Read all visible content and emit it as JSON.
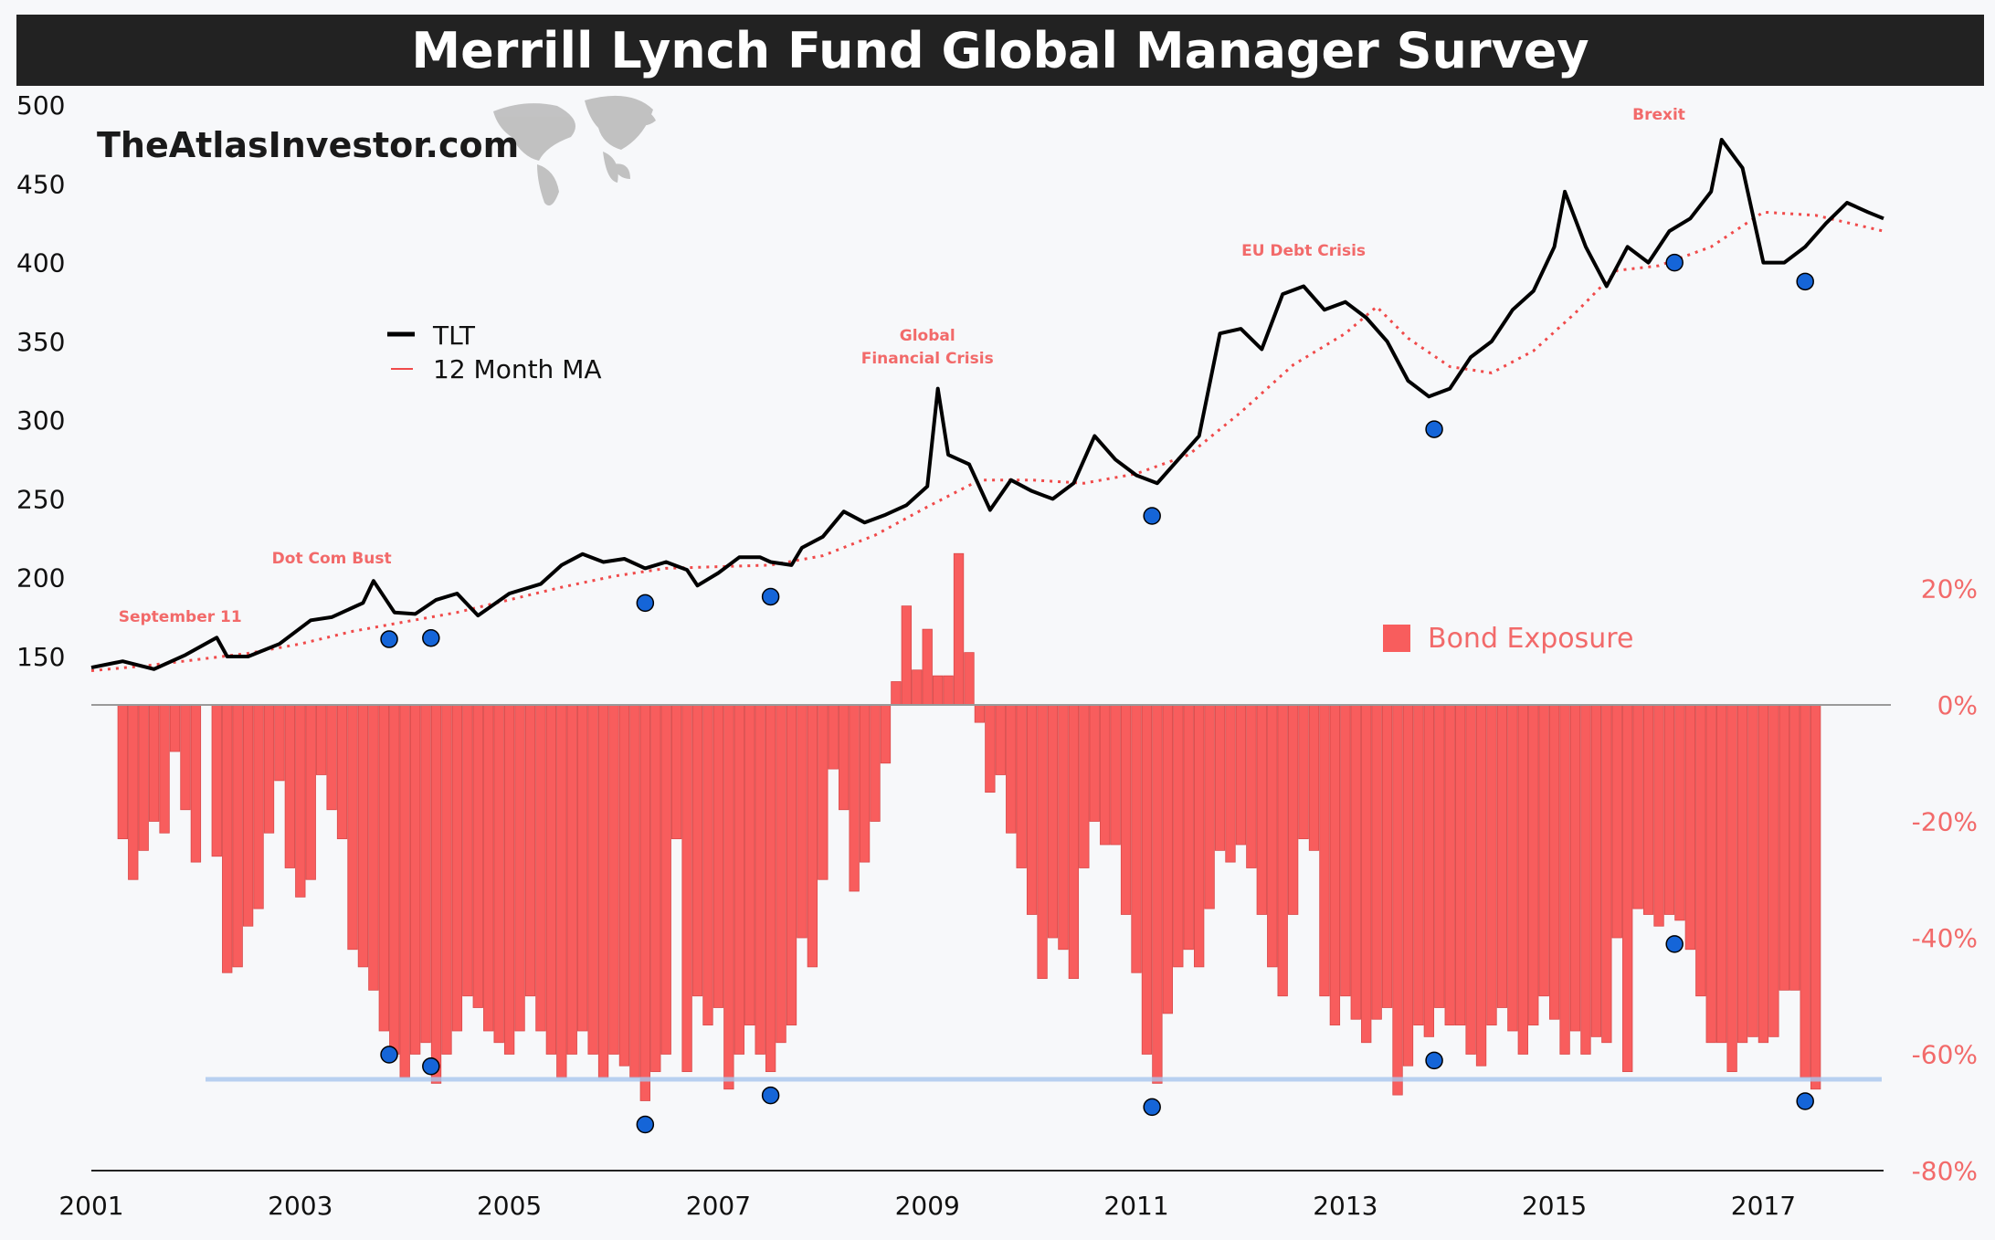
{
  "title": "Merrill Lynch Fund Global Manager Survey",
  "brand": "TheAtlasInvestor.com",
  "colors": {
    "tlt": "#000000",
    "ma": "#f04a4a",
    "bars": "#f85d5d",
    "dots": "#1565d8",
    "accent": "#f26a6a",
    "threshold": "#a9c7ee"
  },
  "chart_data": {
    "type": "line+bar",
    "x_ticks": [
      "2001",
      "2003",
      "2005",
      "2007",
      "2009",
      "2011",
      "2013",
      "2015",
      "2017"
    ],
    "xlim": [
      2001.0,
      2018.15
    ],
    "left_axis": {
      "ticks": [
        500,
        450,
        400,
        350,
        300,
        250,
        200,
        150
      ],
      "ylim": [
        125,
        500
      ]
    },
    "right_axis": {
      "ticks": [
        "20%",
        "0%",
        "-20%",
        "-40%",
        "-60%",
        "-80%"
      ],
      "ylim": [
        -80,
        25
      ]
    },
    "legend": {
      "tlt": "TLT",
      "ma": "12 Month MA",
      "bars": "Bond Exposure"
    },
    "tlt_points": [
      [
        2001.0,
        143
      ],
      [
        2001.3,
        147
      ],
      [
        2001.6,
        142
      ],
      [
        2001.9,
        151
      ],
      [
        2002.2,
        162
      ],
      [
        2002.3,
        150
      ],
      [
        2002.5,
        150
      ],
      [
        2002.8,
        158
      ],
      [
        2003.1,
        173
      ],
      [
        2003.3,
        175
      ],
      [
        2003.6,
        184
      ],
      [
        2003.7,
        198
      ],
      [
        2003.9,
        178
      ],
      [
        2004.1,
        177
      ],
      [
        2004.3,
        186
      ],
      [
        2004.5,
        190
      ],
      [
        2004.7,
        176
      ],
      [
        2005.0,
        190
      ],
      [
        2005.3,
        196
      ],
      [
        2005.5,
        208
      ],
      [
        2005.7,
        215
      ],
      [
        2005.9,
        210
      ],
      [
        2006.1,
        212
      ],
      [
        2006.3,
        206
      ],
      [
        2006.5,
        210
      ],
      [
        2006.7,
        205
      ],
      [
        2006.8,
        195
      ],
      [
        2007.0,
        203
      ],
      [
        2007.2,
        213
      ],
      [
        2007.4,
        213
      ],
      [
        2007.5,
        210
      ],
      [
        2007.7,
        208
      ],
      [
        2007.8,
        219
      ],
      [
        2008.0,
        226
      ],
      [
        2008.2,
        242
      ],
      [
        2008.4,
        235
      ],
      [
        2008.6,
        240
      ],
      [
        2008.8,
        246
      ],
      [
        2009.0,
        258
      ],
      [
        2009.1,
        320
      ],
      [
        2009.2,
        278
      ],
      [
        2009.4,
        272
      ],
      [
        2009.6,
        243
      ],
      [
        2009.8,
        262
      ],
      [
        2010.0,
        255
      ],
      [
        2010.2,
        250
      ],
      [
        2010.4,
        260
      ],
      [
        2010.6,
        290
      ],
      [
        2010.8,
        275
      ],
      [
        2011.0,
        265
      ],
      [
        2011.2,
        260
      ],
      [
        2011.4,
        275
      ],
      [
        2011.6,
        290
      ],
      [
        2011.8,
        355
      ],
      [
        2012.0,
        358
      ],
      [
        2012.2,
        345
      ],
      [
        2012.4,
        380
      ],
      [
        2012.6,
        385
      ],
      [
        2012.8,
        370
      ],
      [
        2013.0,
        375
      ],
      [
        2013.2,
        365
      ],
      [
        2013.4,
        350
      ],
      [
        2013.6,
        325
      ],
      [
        2013.8,
        315
      ],
      [
        2014.0,
        320
      ],
      [
        2014.2,
        340
      ],
      [
        2014.4,
        350
      ],
      [
        2014.6,
        370
      ],
      [
        2014.8,
        382
      ],
      [
        2015.0,
        410
      ],
      [
        2015.1,
        445
      ],
      [
        2015.3,
        410
      ],
      [
        2015.5,
        385
      ],
      [
        2015.7,
        410
      ],
      [
        2015.9,
        400
      ],
      [
        2016.1,
        420
      ],
      [
        2016.3,
        428
      ],
      [
        2016.5,
        445
      ],
      [
        2016.6,
        478
      ],
      [
        2016.8,
        460
      ],
      [
        2016.9,
        430
      ],
      [
        2017.0,
        400
      ],
      [
        2017.2,
        400
      ],
      [
        2017.4,
        410
      ],
      [
        2017.6,
        425
      ],
      [
        2017.8,
        438
      ],
      [
        2018.0,
        432
      ],
      [
        2018.15,
        428
      ]
    ],
    "ma_points": [
      [
        2001.0,
        141
      ],
      [
        2001.5,
        144
      ],
      [
        2002.0,
        148
      ],
      [
        2002.5,
        152
      ],
      [
        2003.0,
        158
      ],
      [
        2003.5,
        166
      ],
      [
        2004.0,
        172
      ],
      [
        2004.5,
        178
      ],
      [
        2005.0,
        186
      ],
      [
        2005.5,
        194
      ],
      [
        2006.0,
        201
      ],
      [
        2006.5,
        206
      ],
      [
        2007.0,
        207
      ],
      [
        2007.5,
        208
      ],
      [
        2008.0,
        214
      ],
      [
        2008.5,
        227
      ],
      [
        2009.0,
        245
      ],
      [
        2009.5,
        262
      ],
      [
        2010.0,
        262
      ],
      [
        2010.5,
        260
      ],
      [
        2011.0,
        266
      ],
      [
        2011.5,
        278
      ],
      [
        2012.0,
        305
      ],
      [
        2012.5,
        335
      ],
      [
        2013.0,
        355
      ],
      [
        2013.3,
        372
      ],
      [
        2013.6,
        352
      ],
      [
        2014.0,
        334
      ],
      [
        2014.4,
        330
      ],
      [
        2014.8,
        344
      ],
      [
        2015.2,
        368
      ],
      [
        2015.6,
        395
      ],
      [
        2016.0,
        398
      ],
      [
        2016.5,
        410
      ],
      [
        2017.0,
        432
      ],
      [
        2017.5,
        430
      ],
      [
        2018.15,
        420
      ]
    ],
    "bond_exposure": [
      [
        2001.3,
        -23
      ],
      [
        2001.4,
        -30
      ],
      [
        2001.5,
        -25
      ],
      [
        2001.6,
        -20
      ],
      [
        2001.7,
        -22
      ],
      [
        2001.8,
        -8
      ],
      [
        2001.9,
        -18
      ],
      [
        2002.0,
        -27
      ],
      [
        2002.2,
        -26
      ],
      [
        2002.3,
        -46
      ],
      [
        2002.4,
        -45
      ],
      [
        2002.5,
        -38
      ],
      [
        2002.6,
        -35
      ],
      [
        2002.7,
        -22
      ],
      [
        2002.8,
        -13
      ],
      [
        2002.9,
        -28
      ],
      [
        2003.0,
        -33
      ],
      [
        2003.1,
        -30
      ],
      [
        2003.2,
        -12
      ],
      [
        2003.3,
        -18
      ],
      [
        2003.4,
        -23
      ],
      [
        2003.5,
        -42
      ],
      [
        2003.6,
        -45
      ],
      [
        2003.7,
        -49
      ],
      [
        2003.8,
        -56
      ],
      [
        2003.9,
        -60
      ],
      [
        2004.0,
        -64
      ],
      [
        2004.1,
        -60
      ],
      [
        2004.2,
        -58
      ],
      [
        2004.3,
        -65
      ],
      [
        2004.4,
        -60
      ],
      [
        2004.5,
        -56
      ],
      [
        2004.6,
        -50
      ],
      [
        2004.7,
        -52
      ],
      [
        2004.8,
        -56
      ],
      [
        2004.9,
        -58
      ],
      [
        2005.0,
        -60
      ],
      [
        2005.1,
        -56
      ],
      [
        2005.2,
        -50
      ],
      [
        2005.3,
        -56
      ],
      [
        2005.4,
        -60
      ],
      [
        2005.5,
        -64
      ],
      [
        2005.6,
        -60
      ],
      [
        2005.7,
        -56
      ],
      [
        2005.8,
        -60
      ],
      [
        2005.9,
        -64
      ],
      [
        2006.0,
        -60
      ],
      [
        2006.1,
        -62
      ],
      [
        2006.2,
        -64
      ],
      [
        2006.3,
        -68
      ],
      [
        2006.4,
        -63
      ],
      [
        2006.5,
        -60
      ],
      [
        2006.6,
        -23
      ],
      [
        2006.7,
        -63
      ],
      [
        2006.8,
        -50
      ],
      [
        2006.9,
        -55
      ],
      [
        2007.0,
        -52
      ],
      [
        2007.1,
        -66
      ],
      [
        2007.2,
        -60
      ],
      [
        2007.3,
        -55
      ],
      [
        2007.4,
        -60
      ],
      [
        2007.5,
        -63
      ],
      [
        2007.6,
        -58
      ],
      [
        2007.7,
        -55
      ],
      [
        2007.8,
        -40
      ],
      [
        2007.9,
        -45
      ],
      [
        2008.0,
        -30
      ],
      [
        2008.1,
        -11
      ],
      [
        2008.2,
        -18
      ],
      [
        2008.3,
        -32
      ],
      [
        2008.4,
        -27
      ],
      [
        2008.5,
        -20
      ],
      [
        2008.6,
        -10
      ],
      [
        2008.7,
        4
      ],
      [
        2008.8,
        17
      ],
      [
        2008.9,
        6
      ],
      [
        2009.0,
        13
      ],
      [
        2009.1,
        5
      ],
      [
        2009.2,
        5
      ],
      [
        2009.3,
        26
      ],
      [
        2009.4,
        9
      ],
      [
        2009.5,
        -3
      ],
      [
        2009.6,
        -15
      ],
      [
        2009.7,
        -12
      ],
      [
        2009.8,
        -22
      ],
      [
        2009.9,
        -28
      ],
      [
        2010.0,
        -36
      ],
      [
        2010.1,
        -47
      ],
      [
        2010.2,
        -40
      ],
      [
        2010.3,
        -42
      ],
      [
        2010.4,
        -47
      ],
      [
        2010.5,
        -28
      ],
      [
        2010.6,
        -20
      ],
      [
        2010.7,
        -24
      ],
      [
        2010.8,
        -24
      ],
      [
        2010.9,
        -36
      ],
      [
        2011.0,
        -46
      ],
      [
        2011.1,
        -60
      ],
      [
        2011.2,
        -65
      ],
      [
        2011.3,
        -53
      ],
      [
        2011.4,
        -45
      ],
      [
        2011.5,
        -42
      ],
      [
        2011.6,
        -45
      ],
      [
        2011.7,
        -35
      ],
      [
        2011.8,
        -25
      ],
      [
        2011.9,
        -27
      ],
      [
        2012.0,
        -24
      ],
      [
        2012.1,
        -28
      ],
      [
        2012.2,
        -36
      ],
      [
        2012.3,
        -45
      ],
      [
        2012.4,
        -50
      ],
      [
        2012.5,
        -36
      ],
      [
        2012.6,
        -23
      ],
      [
        2012.7,
        -25
      ],
      [
        2012.8,
        -50
      ],
      [
        2012.9,
        -55
      ],
      [
        2013.0,
        -50
      ],
      [
        2013.1,
        -54
      ],
      [
        2013.2,
        -58
      ],
      [
        2013.3,
        -54
      ],
      [
        2013.4,
        -52
      ],
      [
        2013.5,
        -67
      ],
      [
        2013.6,
        -62
      ],
      [
        2013.7,
        -55
      ],
      [
        2013.8,
        -57
      ],
      [
        2013.9,
        -52
      ],
      [
        2014.0,
        -55
      ],
      [
        2014.1,
        -55
      ],
      [
        2014.2,
        -60
      ],
      [
        2014.3,
        -62
      ],
      [
        2014.4,
        -55
      ],
      [
        2014.5,
        -52
      ],
      [
        2014.6,
        -56
      ],
      [
        2014.7,
        -60
      ],
      [
        2014.8,
        -55
      ],
      [
        2014.9,
        -50
      ],
      [
        2015.0,
        -54
      ],
      [
        2015.1,
        -60
      ],
      [
        2015.2,
        -56
      ],
      [
        2015.3,
        -60
      ],
      [
        2015.4,
        -57
      ],
      [
        2015.5,
        -58
      ],
      [
        2015.6,
        -40
      ],
      [
        2015.7,
        -63
      ],
      [
        2015.8,
        -35
      ],
      [
        2015.9,
        -36
      ],
      [
        2016.0,
        -38
      ],
      [
        2016.1,
        -36
      ],
      [
        2016.2,
        -37
      ],
      [
        2016.3,
        -42
      ],
      [
        2016.4,
        -50
      ],
      [
        2016.5,
        -58
      ],
      [
        2016.6,
        -58
      ],
      [
        2016.7,
        -63
      ],
      [
        2016.8,
        -58
      ],
      [
        2016.9,
        -57
      ],
      [
        2017.0,
        -58
      ],
      [
        2017.1,
        -57
      ],
      [
        2017.2,
        -49
      ],
      [
        2017.3,
        -49
      ],
      [
        2017.4,
        -64
      ],
      [
        2017.5,
        -66
      ]
    ],
    "contrarian_markers": [
      2003.85,
      2004.25,
      2006.3,
      2007.5,
      2011.15,
      2013.85,
      2016.15,
      2017.4
    ],
    "events": [
      {
        "year": 2001.85,
        "label": "September 11"
      },
      {
        "year": 2003.3,
        "label": "Dot Com Bust"
      },
      {
        "year": 2009.0,
        "label": "Global Financial Crisis"
      },
      {
        "year": 2012.6,
        "label": "EU Debt Crisis"
      },
      {
        "year": 2016.0,
        "label": "Brexit"
      }
    ]
  }
}
